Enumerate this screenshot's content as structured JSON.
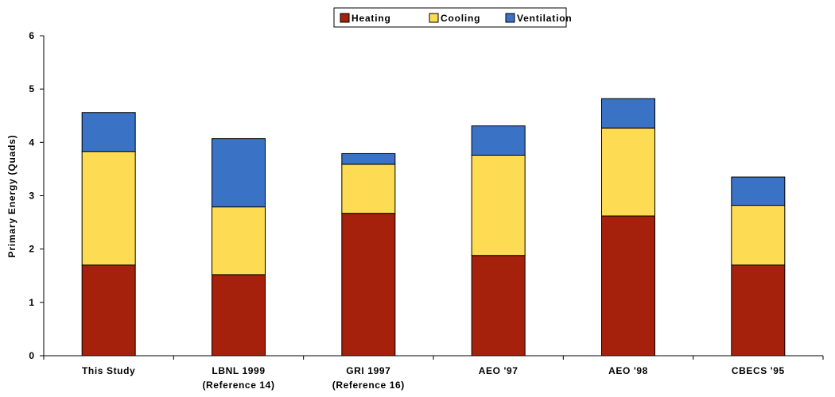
{
  "chart_data": {
    "type": "bar",
    "stacked": true,
    "ylabel": "Primary Energy (Quads)",
    "xlabel": "",
    "ylim": [
      0,
      6
    ],
    "yticks": [
      0,
      1,
      2,
      3,
      4,
      5,
      6
    ],
    "categories": [
      [
        "This Study"
      ],
      [
        "LBNL 1999",
        "(Reference 14)"
      ],
      [
        "GRI 1997",
        "(Reference 16)"
      ],
      [
        "AEO '97"
      ],
      [
        "AEO '98"
      ],
      [
        "CBECS '95"
      ]
    ],
    "series": [
      {
        "name": "Heating",
        "color": "#A6210B",
        "values": [
          1.7,
          1.52,
          2.67,
          1.88,
          2.62,
          1.7
        ]
      },
      {
        "name": "Cooling",
        "color": "#FDDB52",
        "values": [
          2.13,
          1.27,
          0.92,
          1.88,
          1.65,
          1.12
        ]
      },
      {
        "name": "Ventilation",
        "color": "#3A72C6",
        "values": [
          0.73,
          1.28,
          0.2,
          0.55,
          0.55,
          0.53
        ]
      }
    ],
    "legend_position": "top-center",
    "grid": false
  }
}
